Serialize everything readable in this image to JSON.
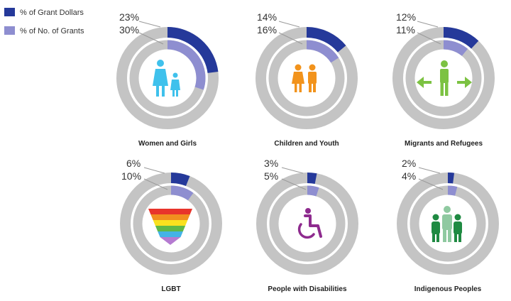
{
  "chart_data": {
    "type": "donut",
    "legend": {
      "placement": "top-left",
      "entries": [
        {
          "name": "% of Grant Dollars",
          "color": "#25399a"
        },
        {
          "name": "% of No. of Grants",
          "color": "#8e8ed0"
        }
      ]
    },
    "series_names": [
      "% of Grant Dollars",
      "% of No. of Grants"
    ],
    "track_color": "#c4c4c4",
    "panels": [
      {
        "category": "Women and Girls",
        "grant_dollars": 23,
        "num_grants": 30,
        "dollars_label": "23%",
        "grants_label": "30%",
        "icon": "women-and-girls-icon"
      },
      {
        "category": "Children and Youth",
        "grant_dollars": 14,
        "num_grants": 16,
        "dollars_label": "14%",
        "grants_label": "16%",
        "icon": "children-and-youth-icon"
      },
      {
        "category": "Migrants and Refugees",
        "grant_dollars": 12,
        "num_grants": 11,
        "dollars_label": "12%",
        "grants_label": "11%",
        "icon": "migrants-and-refugees-icon"
      },
      {
        "category": "LGBT",
        "grant_dollars": 6,
        "num_grants": 10,
        "dollars_label": "6%",
        "grants_label": "10%",
        "icon": "rainbow-triangle-icon"
      },
      {
        "category": "People with Disabilities",
        "grant_dollars": 3,
        "num_grants": 5,
        "dollars_label": "3%",
        "grants_label": "5%",
        "icon": "wheelchair-icon"
      },
      {
        "category": "Indigenous Peoples",
        "grant_dollars": 2,
        "num_grants": 4,
        "dollars_label": "2%",
        "grants_label": "4%",
        "icon": "indigenous-peoples-icon"
      }
    ]
  }
}
